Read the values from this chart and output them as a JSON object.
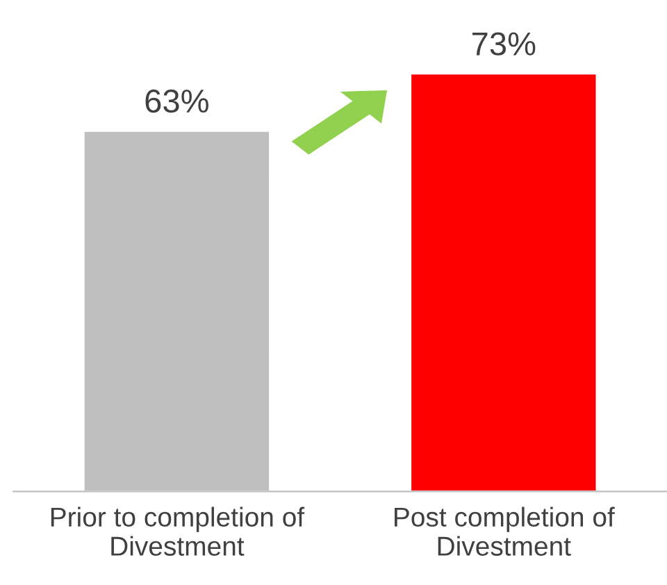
{
  "chart_data": {
    "type": "bar",
    "categories": [
      "Prior to completion of\nDivestment",
      "Post completion of\nDivestment"
    ],
    "values": [
      63,
      73
    ],
    "colors": [
      "#bfbfbf",
      "#ff0000"
    ],
    "value_labels": [
      "63%",
      "73%"
    ],
    "grid": false,
    "legend": false
  }
}
